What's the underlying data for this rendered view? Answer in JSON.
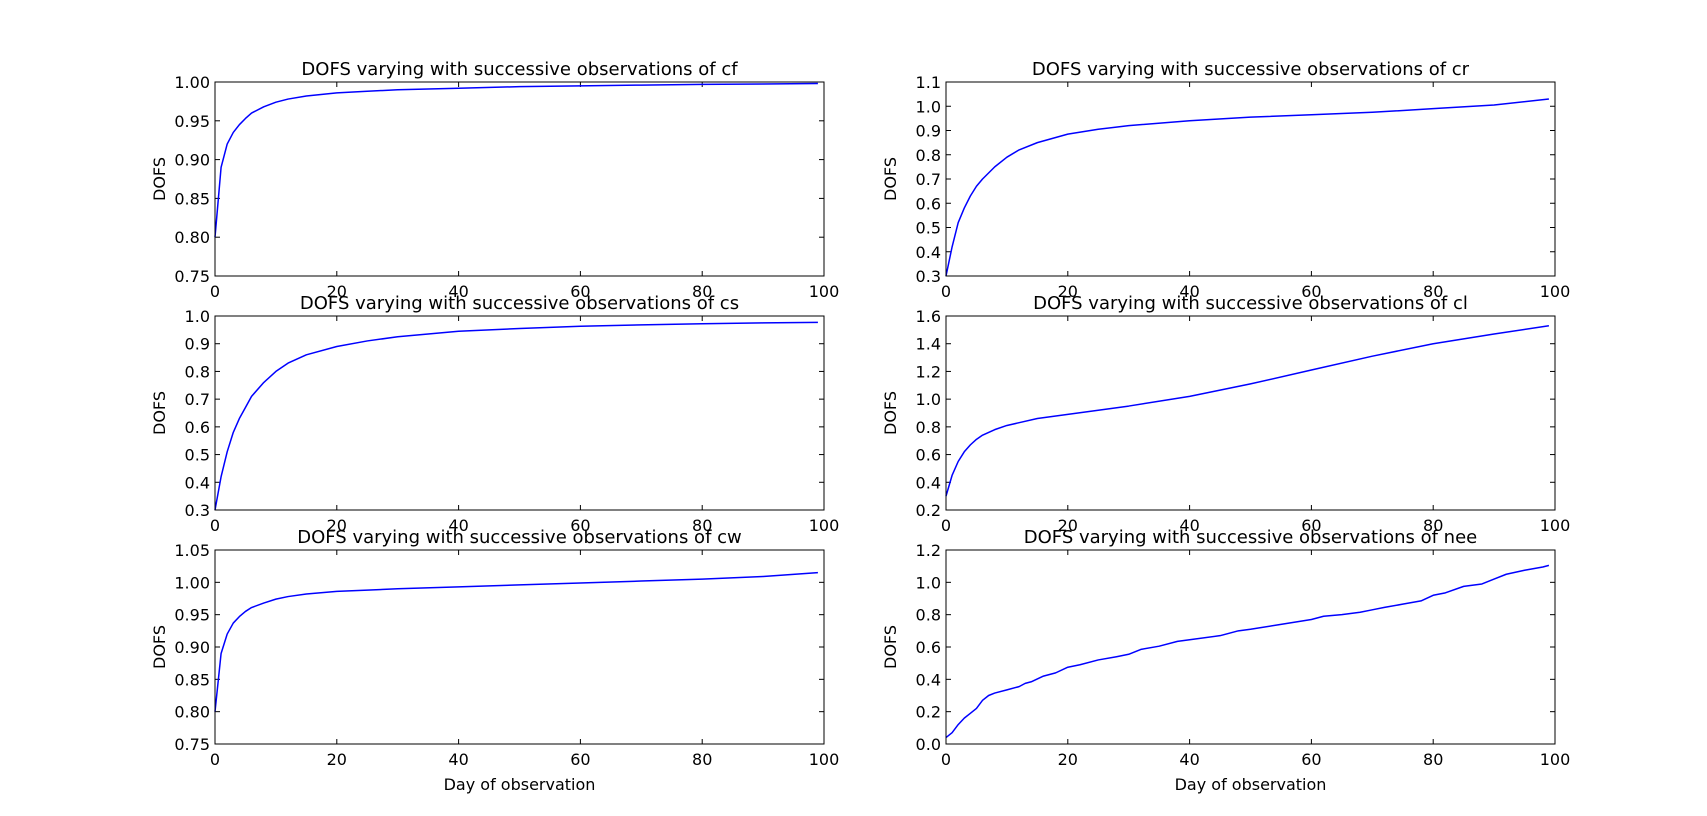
{
  "figure": {
    "background": "#ffffff",
    "line_color": "#0000ff"
  },
  "chart_data": [
    {
      "type": "line",
      "title": "DOFS varying with successive observations of cf",
      "xlabel": "",
      "ylabel": "DOFS",
      "xlim": [
        0,
        100
      ],
      "ylim": [
        0.75,
        1.0
      ],
      "xticks": [
        0,
        20,
        40,
        60,
        80,
        100
      ],
      "yticks": [
        0.75,
        0.8,
        0.85,
        0.9,
        0.95,
        1.0
      ],
      "ytick_labels": [
        "0.75",
        "0.80",
        "0.85",
        "0.90",
        "0.95",
        "1.00"
      ],
      "grid": false,
      "series": [
        {
          "x": [
            0,
            1,
            2,
            3,
            4,
            5,
            6,
            8,
            10,
            12,
            15,
            20,
            25,
            30,
            40,
            50,
            60,
            70,
            80,
            90,
            99
          ],
          "y": [
            0.8,
            0.89,
            0.92,
            0.935,
            0.945,
            0.953,
            0.96,
            0.968,
            0.974,
            0.978,
            0.982,
            0.986,
            0.988,
            0.99,
            0.992,
            0.994,
            0.995,
            0.996,
            0.997,
            0.9975,
            0.998
          ]
        }
      ]
    },
    {
      "type": "line",
      "title": "DOFS varying with successive observations of cr",
      "xlabel": "",
      "ylabel": "DOFS",
      "xlim": [
        0,
        100
      ],
      "ylim": [
        0.3,
        1.1
      ],
      "xticks": [
        0,
        20,
        40,
        60,
        80,
        100
      ],
      "yticks": [
        0.3,
        0.4,
        0.5,
        0.6,
        0.7,
        0.8,
        0.9,
        1.0,
        1.1
      ],
      "ytick_labels": [
        "0.3",
        "0.4",
        "0.5",
        "0.6",
        "0.7",
        "0.8",
        "0.9",
        "1.0",
        "1.1"
      ],
      "grid": false,
      "series": [
        {
          "x": [
            0,
            1,
            2,
            3,
            4,
            5,
            6,
            8,
            10,
            12,
            15,
            20,
            25,
            30,
            40,
            50,
            60,
            70,
            80,
            90,
            99
          ],
          "y": [
            0.3,
            0.42,
            0.52,
            0.58,
            0.63,
            0.67,
            0.7,
            0.75,
            0.79,
            0.82,
            0.85,
            0.885,
            0.905,
            0.92,
            0.94,
            0.955,
            0.965,
            0.975,
            0.99,
            1.005,
            1.03
          ]
        }
      ]
    },
    {
      "type": "line",
      "title": "DOFS varying with successive observations of cs",
      "xlabel": "",
      "ylabel": "DOFS",
      "xlim": [
        0,
        100
      ],
      "ylim": [
        0.3,
        1.0
      ],
      "xticks": [
        0,
        20,
        40,
        60,
        80,
        100
      ],
      "yticks": [
        0.3,
        0.4,
        0.5,
        0.6,
        0.7,
        0.8,
        0.9,
        1.0
      ],
      "ytick_labels": [
        "0.3",
        "0.4",
        "0.5",
        "0.6",
        "0.7",
        "0.8",
        "0.9",
        "1.0"
      ],
      "grid": false,
      "series": [
        {
          "x": [
            0,
            1,
            2,
            3,
            4,
            5,
            6,
            8,
            10,
            12,
            15,
            20,
            25,
            30,
            40,
            50,
            60,
            70,
            80,
            90,
            99
          ],
          "y": [
            0.3,
            0.42,
            0.51,
            0.58,
            0.63,
            0.67,
            0.71,
            0.76,
            0.8,
            0.83,
            0.86,
            0.89,
            0.91,
            0.925,
            0.945,
            0.955,
            0.963,
            0.968,
            0.972,
            0.975,
            0.977
          ]
        }
      ]
    },
    {
      "type": "line",
      "title": "DOFS varying with successive observations of cl",
      "xlabel": "",
      "ylabel": "DOFS",
      "xlim": [
        0,
        100
      ],
      "ylim": [
        0.2,
        1.6
      ],
      "xticks": [
        0,
        20,
        40,
        60,
        80,
        100
      ],
      "yticks": [
        0.2,
        0.4,
        0.6,
        0.8,
        1.0,
        1.2,
        1.4,
        1.6
      ],
      "ytick_labels": [
        "0.2",
        "0.4",
        "0.6",
        "0.8",
        "1.0",
        "1.2",
        "1.4",
        "1.6"
      ],
      "grid": false,
      "series": [
        {
          "x": [
            0,
            1,
            2,
            3,
            4,
            5,
            6,
            8,
            10,
            12,
            15,
            20,
            25,
            30,
            40,
            50,
            60,
            70,
            80,
            90,
            99
          ],
          "y": [
            0.3,
            0.45,
            0.55,
            0.62,
            0.67,
            0.71,
            0.74,
            0.78,
            0.81,
            0.83,
            0.86,
            0.89,
            0.92,
            0.95,
            1.02,
            1.11,
            1.21,
            1.31,
            1.4,
            1.47,
            1.53
          ]
        }
      ]
    },
    {
      "type": "line",
      "title": "DOFS varying with successive observations of cw",
      "xlabel": "Day of observation",
      "ylabel": "DOFS",
      "xlim": [
        0,
        100
      ],
      "ylim": [
        0.75,
        1.05
      ],
      "xticks": [
        0,
        20,
        40,
        60,
        80,
        100
      ],
      "yticks": [
        0.75,
        0.8,
        0.85,
        0.9,
        0.95,
        1.0,
        1.05
      ],
      "ytick_labels": [
        "0.75",
        "0.80",
        "0.85",
        "0.90",
        "0.95",
        "1.00",
        "1.05"
      ],
      "grid": false,
      "series": [
        {
          "x": [
            0,
            1,
            2,
            3,
            4,
            5,
            6,
            8,
            10,
            12,
            15,
            20,
            25,
            30,
            40,
            50,
            60,
            70,
            80,
            90,
            99
          ],
          "y": [
            0.8,
            0.89,
            0.92,
            0.937,
            0.947,
            0.955,
            0.961,
            0.968,
            0.974,
            0.978,
            0.982,
            0.986,
            0.988,
            0.99,
            0.993,
            0.996,
            0.999,
            1.002,
            1.005,
            1.009,
            1.015
          ]
        }
      ]
    },
    {
      "type": "line",
      "title": "DOFS varying with successive observations of nee",
      "xlabel": "Day of observation",
      "ylabel": "DOFS",
      "xlim": [
        0,
        100
      ],
      "ylim": [
        0.0,
        1.2
      ],
      "xticks": [
        0,
        20,
        40,
        60,
        80,
        100
      ],
      "yticks": [
        0.0,
        0.2,
        0.4,
        0.6,
        0.8,
        1.0,
        1.2
      ],
      "ytick_labels": [
        "0.0",
        "0.2",
        "0.4",
        "0.6",
        "0.8",
        "1.0",
        "1.2"
      ],
      "grid": false,
      "series": [
        {
          "x": [
            0,
            1,
            2,
            3,
            4,
            5,
            6,
            7,
            8,
            10,
            12,
            13,
            14,
            16,
            18,
            20,
            22,
            25,
            28,
            30,
            32,
            35,
            38,
            40,
            45,
            48,
            50,
            55,
            60,
            62,
            65,
            68,
            70,
            72,
            75,
            78,
            80,
            82,
            85,
            88,
            90,
            92,
            95,
            98,
            99
          ],
          "y": [
            0.04,
            0.07,
            0.12,
            0.16,
            0.19,
            0.22,
            0.27,
            0.3,
            0.315,
            0.335,
            0.355,
            0.375,
            0.385,
            0.42,
            0.44,
            0.475,
            0.49,
            0.52,
            0.54,
            0.555,
            0.585,
            0.605,
            0.635,
            0.645,
            0.67,
            0.7,
            0.71,
            0.74,
            0.77,
            0.79,
            0.8,
            0.815,
            0.83,
            0.845,
            0.865,
            0.885,
            0.92,
            0.935,
            0.975,
            0.99,
            1.02,
            1.05,
            1.075,
            1.095,
            1.105
          ]
        }
      ]
    }
  ]
}
